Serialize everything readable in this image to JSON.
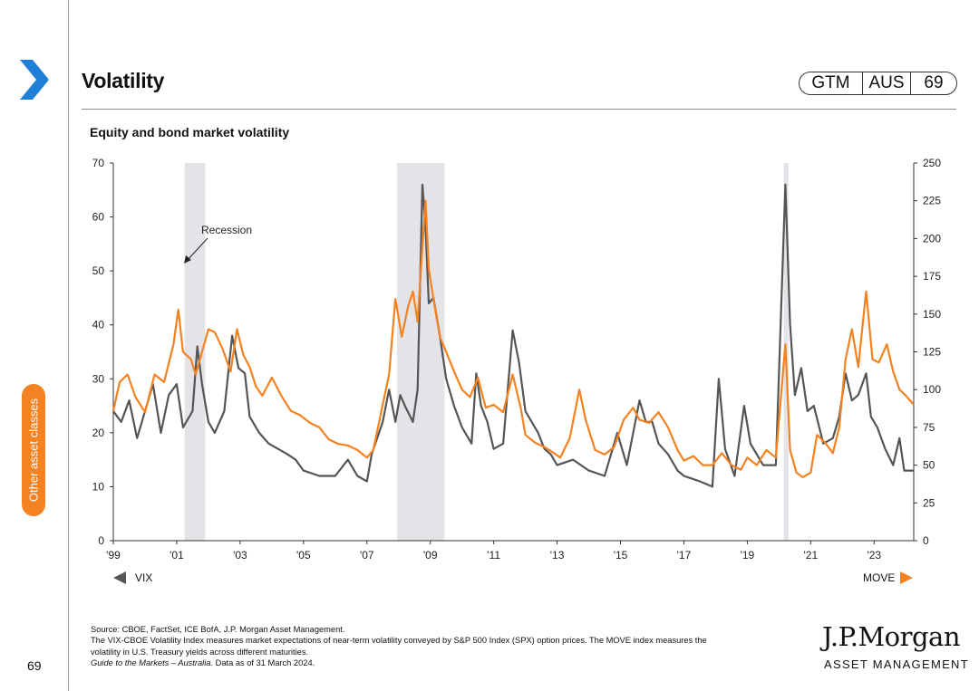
{
  "header": {
    "title": "Volatility",
    "badge": [
      "GTM",
      "AUS",
      "69"
    ]
  },
  "sidebar": {
    "section_label": "Other asset classes"
  },
  "colors": {
    "accent": "#f58220",
    "vix": "#555555",
    "move": "#f58220",
    "recession": "#e4e4e8"
  },
  "chart_data": {
    "type": "line",
    "title": "Equity and bond market volatility",
    "xlabel": "",
    "x_ticks": [
      "'99",
      "'01",
      "'03",
      "'05",
      "'07",
      "'09",
      "'11",
      "'13",
      "'15",
      "'17",
      "'19",
      "'21",
      "'23"
    ],
    "x_range": [
      1999.0,
      2024.25
    ],
    "left_axis": {
      "label": "VIX",
      "ylim": [
        0,
        70
      ],
      "ticks": [
        "0",
        "10",
        "20",
        "30",
        "40",
        "50",
        "60",
        "70"
      ]
    },
    "right_axis": {
      "label": "MOVE",
      "ylim": [
        0,
        250
      ],
      "ticks": [
        "0",
        "25",
        "50",
        "75",
        "100",
        "125",
        "150",
        "175",
        "200",
        "225",
        "250"
      ]
    },
    "recessions": [
      [
        2001.25,
        2001.9
      ],
      [
        2007.95,
        2009.45
      ],
      [
        2020.15,
        2020.3
      ]
    ],
    "annotation": "Recession",
    "legend": {
      "left": "VIX",
      "right": "MOVE"
    },
    "series": [
      {
        "name": "VIX",
        "axis": "left",
        "points": [
          [
            1999.0,
            24
          ],
          [
            1999.25,
            22
          ],
          [
            1999.5,
            26
          ],
          [
            1999.75,
            19
          ],
          [
            2000.0,
            24
          ],
          [
            2000.25,
            29
          ],
          [
            2000.5,
            20
          ],
          [
            2000.75,
            27
          ],
          [
            2001.0,
            29
          ],
          [
            2001.2,
            21
          ],
          [
            2001.5,
            24
          ],
          [
            2001.65,
            36
          ],
          [
            2001.8,
            29
          ],
          [
            2002.0,
            22
          ],
          [
            2002.2,
            20
          ],
          [
            2002.5,
            24
          ],
          [
            2002.75,
            38
          ],
          [
            2002.95,
            32
          ],
          [
            2003.15,
            31
          ],
          [
            2003.3,
            23
          ],
          [
            2003.6,
            20
          ],
          [
            2003.9,
            18
          ],
          [
            2004.2,
            17
          ],
          [
            2004.5,
            16
          ],
          [
            2004.75,
            15
          ],
          [
            2005.0,
            13
          ],
          [
            2005.5,
            12
          ],
          [
            2006.0,
            12
          ],
          [
            2006.4,
            15
          ],
          [
            2006.7,
            12
          ],
          [
            2007.0,
            11
          ],
          [
            2007.15,
            16
          ],
          [
            2007.5,
            22
          ],
          [
            2007.7,
            28
          ],
          [
            2007.9,
            22
          ],
          [
            2008.05,
            27
          ],
          [
            2008.2,
            25
          ],
          [
            2008.45,
            22
          ],
          [
            2008.6,
            28
          ],
          [
            2008.75,
            66
          ],
          [
            2008.85,
            58
          ],
          [
            2008.95,
            44
          ],
          [
            2009.1,
            45
          ],
          [
            2009.3,
            38
          ],
          [
            2009.5,
            30
          ],
          [
            2009.75,
            25
          ],
          [
            2010.0,
            21
          ],
          [
            2010.3,
            18
          ],
          [
            2010.45,
            31
          ],
          [
            2010.6,
            25
          ],
          [
            2010.8,
            22
          ],
          [
            2011.0,
            17
          ],
          [
            2011.3,
            18
          ],
          [
            2011.6,
            39
          ],
          [
            2011.8,
            33
          ],
          [
            2012.0,
            24
          ],
          [
            2012.4,
            20
          ],
          [
            2012.6,
            17
          ],
          [
            2012.8,
            16
          ],
          [
            2013.0,
            14
          ],
          [
            2013.5,
            15
          ],
          [
            2014.0,
            13
          ],
          [
            2014.5,
            12
          ],
          [
            2014.9,
            20
          ],
          [
            2015.2,
            14
          ],
          [
            2015.6,
            26
          ],
          [
            2015.8,
            22
          ],
          [
            2016.0,
            22
          ],
          [
            2016.2,
            18
          ],
          [
            2016.5,
            16
          ],
          [
            2016.8,
            13
          ],
          [
            2017.0,
            12
          ],
          [
            2017.5,
            11
          ],
          [
            2017.9,
            10
          ],
          [
            2018.1,
            30
          ],
          [
            2018.3,
            17
          ],
          [
            2018.6,
            12
          ],
          [
            2018.9,
            25
          ],
          [
            2019.1,
            18
          ],
          [
            2019.5,
            14
          ],
          [
            2019.9,
            14
          ],
          [
            2020.2,
            66
          ],
          [
            2020.35,
            40
          ],
          [
            2020.5,
            27
          ],
          [
            2020.7,
            32
          ],
          [
            2020.9,
            24
          ],
          [
            2021.1,
            25
          ],
          [
            2021.4,
            18
          ],
          [
            2021.7,
            19
          ],
          [
            2021.9,
            23
          ],
          [
            2022.1,
            31
          ],
          [
            2022.3,
            26
          ],
          [
            2022.5,
            27
          ],
          [
            2022.75,
            31
          ],
          [
            2022.9,
            23
          ],
          [
            2023.1,
            21
          ],
          [
            2023.35,
            17
          ],
          [
            2023.6,
            14
          ],
          [
            2023.8,
            19
          ],
          [
            2023.95,
            13
          ],
          [
            2024.1,
            13
          ],
          [
            2024.25,
            13
          ]
        ]
      },
      {
        "name": "MOVE",
        "axis": "right",
        "points": [
          [
            1999.0,
            86
          ],
          [
            1999.2,
            105
          ],
          [
            1999.45,
            110
          ],
          [
            1999.7,
            95
          ],
          [
            2000.0,
            85
          ],
          [
            2000.3,
            110
          ],
          [
            2000.6,
            105
          ],
          [
            2000.9,
            130
          ],
          [
            2001.05,
            153
          ],
          [
            2001.2,
            125
          ],
          [
            2001.45,
            120
          ],
          [
            2001.6,
            110
          ],
          [
            2001.8,
            125
          ],
          [
            2002.0,
            140
          ],
          [
            2002.2,
            138
          ],
          [
            2002.45,
            127
          ],
          [
            2002.7,
            112
          ],
          [
            2002.9,
            140
          ],
          [
            2003.1,
            123
          ],
          [
            2003.3,
            115
          ],
          [
            2003.5,
            102
          ],
          [
            2003.7,
            96
          ],
          [
            2004.0,
            108
          ],
          [
            2004.3,
            96
          ],
          [
            2004.6,
            86
          ],
          [
            2004.9,
            83
          ],
          [
            2005.2,
            78
          ],
          [
            2005.5,
            75
          ],
          [
            2005.8,
            67
          ],
          [
            2006.1,
            64
          ],
          [
            2006.4,
            63
          ],
          [
            2006.7,
            60
          ],
          [
            2007.0,
            55
          ],
          [
            2007.2,
            60
          ],
          [
            2007.5,
            90
          ],
          [
            2007.7,
            110
          ],
          [
            2007.9,
            160
          ],
          [
            2008.1,
            135
          ],
          [
            2008.3,
            155
          ],
          [
            2008.45,
            165
          ],
          [
            2008.6,
            145
          ],
          [
            2008.75,
            195
          ],
          [
            2008.85,
            225
          ],
          [
            2008.95,
            180
          ],
          [
            2009.1,
            160
          ],
          [
            2009.3,
            135
          ],
          [
            2009.5,
            125
          ],
          [
            2009.75,
            112
          ],
          [
            2010.0,
            100
          ],
          [
            2010.25,
            95
          ],
          [
            2010.5,
            108
          ],
          [
            2010.75,
            88
          ],
          [
            2011.0,
            90
          ],
          [
            2011.3,
            85
          ],
          [
            2011.6,
            110
          ],
          [
            2011.85,
            88
          ],
          [
            2012.0,
            70
          ],
          [
            2012.3,
            65
          ],
          [
            2012.6,
            62
          ],
          [
            2012.9,
            58
          ],
          [
            2013.1,
            55
          ],
          [
            2013.4,
            68
          ],
          [
            2013.7,
            100
          ],
          [
            2013.9,
            80
          ],
          [
            2014.2,
            60
          ],
          [
            2014.5,
            57
          ],
          [
            2014.8,
            62
          ],
          [
            2015.1,
            80
          ],
          [
            2015.4,
            88
          ],
          [
            2015.6,
            80
          ],
          [
            2015.9,
            78
          ],
          [
            2016.2,
            85
          ],
          [
            2016.5,
            75
          ],
          [
            2016.8,
            60
          ],
          [
            2017.0,
            53
          ],
          [
            2017.3,
            56
          ],
          [
            2017.6,
            50
          ],
          [
            2017.9,
            50
          ],
          [
            2018.2,
            58
          ],
          [
            2018.5,
            50
          ],
          [
            2018.8,
            47
          ],
          [
            2019.0,
            55
          ],
          [
            2019.3,
            50
          ],
          [
            2019.6,
            60
          ],
          [
            2019.9,
            55
          ],
          [
            2020.2,
            130
          ],
          [
            2020.35,
            60
          ],
          [
            2020.55,
            45
          ],
          [
            2020.75,
            42
          ],
          [
            2021.0,
            45
          ],
          [
            2021.2,
            70
          ],
          [
            2021.45,
            65
          ],
          [
            2021.7,
            58
          ],
          [
            2021.9,
            75
          ],
          [
            2022.1,
            120
          ],
          [
            2022.3,
            140
          ],
          [
            2022.5,
            115
          ],
          [
            2022.75,
            165
          ],
          [
            2022.95,
            120
          ],
          [
            2023.15,
            118
          ],
          [
            2023.4,
            130
          ],
          [
            2023.6,
            112
          ],
          [
            2023.8,
            100
          ],
          [
            2024.0,
            96
          ],
          [
            2024.25,
            90
          ]
        ]
      }
    ]
  },
  "footer": {
    "line1": "Source: CBOE, FactSet, ICE BofA, J.P. Morgan Asset Management.",
    "line2": "The VIX-CBOE Volatility Index measures market expectations of near-term volatility conveyed by S&P 500 Index (SPX) option prices. The MOVE index measures the",
    "line3": "volatility in U.S. Treasury yields across different maturities.",
    "line4_italic": "Guide to the Markets – Australia",
    "line4_rest": ". Data as of 31 March 2024."
  },
  "page_number": "69",
  "logo": {
    "wordmark": "J.P.Morgan",
    "tagline": "ASSET MANAGEMENT"
  }
}
